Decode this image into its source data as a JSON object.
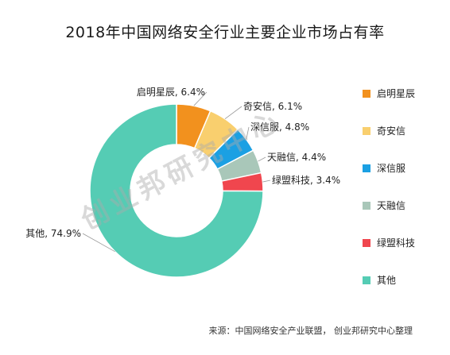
{
  "title": "2018年中国网络安全行业主要企业市场占有率",
  "source": "来源：中国网络安全产业联盟， 创业邦研究中心整理",
  "watermark": "创业邦研究中心",
  "chart_data": {
    "type": "pie",
    "donut": true,
    "title": "2018年中国网络安全行业主要企业市场占有率",
    "legend_position": "right",
    "series": [
      {
        "name": "启明星辰",
        "value": 6.4,
        "label": "启明星辰, 6.4%",
        "color": "#F2911E"
      },
      {
        "name": "奇安信",
        "value": 6.1,
        "label": "奇安信, 6.1%",
        "color": "#F9CF6E"
      },
      {
        "name": "深信服",
        "value": 4.8,
        "label": "深信服, 4.8%",
        "color": "#1BA0E3"
      },
      {
        "name": "天融信",
        "value": 4.4,
        "label": "天融信, 4.4%",
        "color": "#A9C7B9"
      },
      {
        "name": "绿盟科技",
        "value": 3.4,
        "label": "绿盟科技, 3.4%",
        "color": "#F0464E"
      },
      {
        "name": "其他",
        "value": 74.9,
        "label": "其他, 74.9%",
        "color": "#55CCB4"
      }
    ]
  }
}
